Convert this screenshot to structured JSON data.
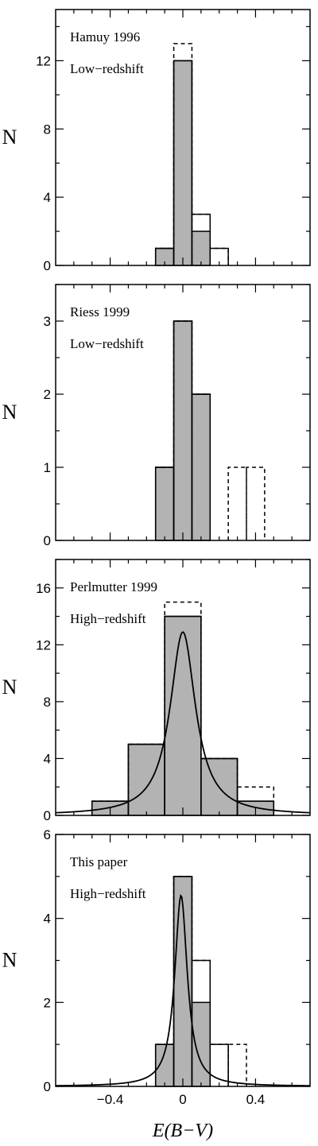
{
  "figure": {
    "xlabel": "E(B−V)",
    "x_tick_labels": [
      "−0.4",
      "0",
      "0.4"
    ]
  },
  "colors": {
    "fill": "#b3b3b3",
    "stroke": "#000000",
    "background": "#ffffff"
  },
  "chart_data": [
    {
      "type": "bar",
      "ylabel": "N",
      "annotation": [
        "Hamuy 1996",
        "Low−redshift"
      ],
      "xlim": [
        -0.7,
        0.7
      ],
      "ylim": [
        0,
        15
      ],
      "yticks": [
        0,
        4,
        8,
        12
      ],
      "y_tick_labels": [
        "0",
        "4",
        "8",
        "12"
      ],
      "bin_edges": [
        -0.15,
        -0.05,
        0.05,
        0.15,
        0.25
      ],
      "series": [
        {
          "style": "filled",
          "values": [
            1,
            12,
            2,
            0
          ]
        },
        {
          "style": "solid-outline",
          "values": [
            1,
            12,
            3,
            1
          ]
        },
        {
          "style": "dashed-outline",
          "values": [
            1,
            13,
            3,
            1
          ]
        }
      ]
    },
    {
      "type": "bar",
      "ylabel": "N",
      "annotation": [
        "Riess 1999",
        "Low−redshift"
      ],
      "xlim": [
        -0.7,
        0.7
      ],
      "ylim": [
        0,
        3.5
      ],
      "yticks": [
        0,
        1,
        2,
        3
      ],
      "y_tick_labels": [
        "0",
        "1",
        "2",
        "3"
      ],
      "bin_edges": [
        -0.15,
        -0.05,
        0.05,
        0.15,
        0.25,
        0.35,
        0.45
      ],
      "series": [
        {
          "style": "filled",
          "values": [
            1,
            3,
            2,
            0,
            0,
            0
          ]
        },
        {
          "style": "solid-outline",
          "values": [
            1,
            3,
            2,
            0,
            0,
            0
          ]
        },
        {
          "style": "dashed-outline",
          "values": [
            1,
            3,
            2,
            0,
            1,
            1
          ]
        }
      ]
    },
    {
      "type": "bar",
      "ylabel": "N",
      "annotation": [
        "Perlmutter 1999",
        "High−redshift"
      ],
      "xlim": [
        -0.7,
        0.7
      ],
      "ylim": [
        0,
        18
      ],
      "yticks": [
        0,
        4,
        8,
        12,
        16
      ],
      "y_tick_labels": [
        "0",
        "4",
        "8",
        "12",
        "16"
      ],
      "bin_edges": [
        -0.5,
        -0.3,
        -0.1,
        0.1,
        0.3,
        0.5
      ],
      "series": [
        {
          "style": "filled",
          "values": [
            1,
            5,
            14,
            4,
            1
          ]
        },
        {
          "style": "solid-outline",
          "values": [
            1,
            5,
            14,
            4,
            1
          ]
        },
        {
          "style": "dashed-outline",
          "values": [
            1,
            5,
            15,
            4,
            2
          ]
        }
      ],
      "curve": {
        "shape": "lorentzian",
        "peak": 12.9,
        "center": 0.0,
        "hwhm": 0.085
      }
    },
    {
      "type": "bar",
      "ylabel": "N",
      "annotation": [
        "This paper",
        "High−redshift"
      ],
      "xlim": [
        -0.7,
        0.7
      ],
      "ylim": [
        0,
        6
      ],
      "yticks": [
        0,
        2,
        4,
        6
      ],
      "y_tick_labels": [
        "0",
        "2",
        "4",
        "6"
      ],
      "bin_edges": [
        -0.15,
        -0.05,
        0.05,
        0.15,
        0.25,
        0.35
      ],
      "series": [
        {
          "style": "filled",
          "values": [
            1,
            5,
            2,
            0,
            0
          ]
        },
        {
          "style": "solid-outline",
          "values": [
            1,
            5,
            3,
            1,
            0
          ]
        },
        {
          "style": "dashed-outline",
          "values": [
            1,
            5,
            3,
            1,
            1
          ]
        }
      ],
      "curve": {
        "shape": "lorentzian",
        "peak": 4.55,
        "center": -0.01,
        "hwhm": 0.042
      }
    }
  ]
}
